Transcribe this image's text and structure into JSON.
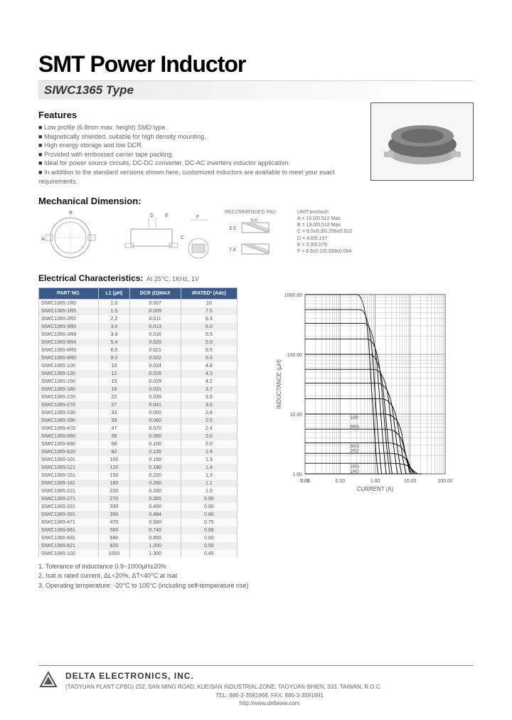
{
  "title": "SMT Power Inductor",
  "subtitle": "SIWC1365 Type",
  "features_heading": "Features",
  "features": [
    "Low profile (6.8mm max. height) SMD type.",
    "Magnetically shielded, suitable for high density mounting.",
    "High energy storage and low DCR.",
    "Provided with embossed carrier tape packing.",
    "Ideal for power source circuits, DC-DC converter, DC-AC inverters inductor application.",
    "In addition to the standard versions shown here, customized inductors are available to meet your exact requirements."
  ],
  "mech_heading": "Mechanical Dimension:",
  "pad_heading": "RECOMMENDED PAD",
  "pad_dims": {
    "w1": "5.0",
    "w2": "3.0",
    "h": "7.6"
  },
  "unit_lines": [
    "UNIT:mm/inch",
    "A = 13.0/0.512 Max.",
    "B = 13.0/0.512 Max.",
    "C = 6.5±0.3/0.256±0.012",
    "D = 4.0/0.157",
    "E = 2.0/0.079",
    "F = 8.6±0.1/0.339±0.004"
  ],
  "ec_heading": "Electrical Characteristics:",
  "ec_sub": "At 25°C, 1KHz, 1V",
  "cols": [
    "PART NO.",
    "L1 (µH)",
    "DCR (Ω)MAX",
    "IRATED² (Adc)"
  ],
  "rows": [
    [
      "SIWC1365-1R0",
      "1.0",
      "0.007",
      "10"
    ],
    [
      "SIWC1365-1R5",
      "1.5",
      "0.009",
      "7.5"
    ],
    [
      "SIWC1365-2R2",
      "2.2",
      "0.011",
      "6.3"
    ],
    [
      "SIWC1365-3R0",
      "3.0",
      "0.013",
      "6.0"
    ],
    [
      "SIWC1365-3R9",
      "3.9",
      "0.016",
      "5.5"
    ],
    [
      "SIWC1365-5R4",
      "5.4",
      "0.020",
      "5.0"
    ],
    [
      "SIWC1365-6R5",
      "6.5",
      "0.021",
      "5.5"
    ],
    [
      "SIWC1365-8R0",
      "8.0",
      "0.022",
      "5.0"
    ],
    [
      "SIWC1365-100",
      "10",
      "0.024",
      "4.8"
    ],
    [
      "SIWC1365-120",
      "12",
      "0.026",
      "4.3"
    ],
    [
      "SIWC1365-150",
      "15",
      "0.029",
      "4.2"
    ],
    [
      "SIWC1365-180",
      "18",
      "0.031",
      "3.7"
    ],
    [
      "SIWC1365-220",
      "22",
      "0.035",
      "3.5"
    ],
    [
      "SIWC1365-270",
      "27",
      "0.041",
      "3.0"
    ],
    [
      "SIWC1365-330",
      "33",
      "0.050",
      "2.8"
    ],
    [
      "SIWC1365-390",
      "39",
      "0.060",
      "2.5"
    ],
    [
      "SIWC1365-470",
      "47",
      "0.070",
      "2.4"
    ],
    [
      "SIWC1365-560",
      "56",
      "0.080",
      "2.0"
    ],
    [
      "SIWC1365-680",
      "68",
      "0.100",
      "2.0"
    ],
    [
      "SIWC1365-820",
      "82",
      "0.135",
      "1.9"
    ],
    [
      "SIWC1365-101",
      "100",
      "0.150",
      "1.3"
    ],
    [
      "SIWC1365-121",
      "120",
      "0.180",
      "1.4"
    ],
    [
      "SIWC1365-151",
      "150",
      "0.220",
      "1.3"
    ],
    [
      "SIWC1365-181",
      "180",
      "0.260",
      "1.1"
    ],
    [
      "SIWC1365-221",
      "220",
      "0.330",
      "1.0"
    ],
    [
      "SIWC1365-271",
      "270",
      "0.355",
      "0.95"
    ],
    [
      "SIWC1365-331",
      "330",
      "0.400",
      "0.90"
    ],
    [
      "SIWC1365-391",
      "390",
      "0.484",
      "0.80"
    ],
    [
      "SIWC1365-471",
      "470",
      "0.580",
      "0.75"
    ],
    [
      "SIWC1365-561",
      "560",
      "0.740",
      "0.68"
    ],
    [
      "SIWC1365-681",
      "680",
      "0.850",
      "0.60"
    ],
    [
      "SIWC1365-821",
      "820",
      "1.200",
      "0.55"
    ],
    [
      "SIWC1365-102",
      "1000",
      "1.300",
      "0.45"
    ]
  ],
  "chart": {
    "ylabel": "INDUCTANCE (µH)",
    "xlabel": "CURRENT (A)",
    "x_ticks": [
      "0.00",
      "0.01",
      "0.10",
      "1.00",
      "10.00",
      "100.00"
    ],
    "y_ticks": [
      "1.00",
      "10.00",
      "100.00",
      "1000.00"
    ],
    "grid_color": "#888888",
    "bg_color": "#ffffff",
    "line_color": "#000000",
    "curve_labels": [
      "1R0",
      "1R5",
      "2R2",
      "3R3",
      "5R6",
      "100"
    ],
    "series": [
      {
        "start_y": 1000,
        "drop_x": 0.55
      },
      {
        "start_y": 560,
        "drop_x": 0.7
      },
      {
        "start_y": 330,
        "drop_x": 0.95
      },
      {
        "start_y": 180,
        "drop_x": 1.2
      },
      {
        "start_y": 100,
        "drop_x": 1.4
      },
      {
        "start_y": 56,
        "drop_x": 2.0
      },
      {
        "start_y": 33,
        "drop_x": 2.6
      },
      {
        "start_y": 18,
        "drop_x": 3.5
      },
      {
        "start_y": 10,
        "drop_x": 4.6
      },
      {
        "start_y": 5.6,
        "drop_x": 5.0
      },
      {
        "start_y": 3.3,
        "drop_x": 5.7
      },
      {
        "start_y": 2.2,
        "drop_x": 6.3
      },
      {
        "start_y": 1.5,
        "drop_x": 7.5
      },
      {
        "start_y": 1.0,
        "drop_x": 10.0
      }
    ]
  },
  "notes_label": "Notes",
  "notes": [
    "1. Tolerance of inductance 0.9~1000µH±20%",
    "2. Isat is rated current, ΔL<20%, ΔT<40°C at Isat",
    "3. Operating temperature: -20°C to 105°C (including self-temperature rise)"
  ],
  "footer": {
    "company": "DELTA ELECTRONICS, INC.",
    "addr": "(TAOYUAN PLANT CPBG) 252, SAN MING ROAD, KUEISAN INDUSTRIAL ZONE, TAOYUAN SHIEN, 333, TAIWAN, R.O.C.",
    "tel": "TEL: 886-3-3591968, FAX: 886-3-3591991",
    "url": "http://www.deltaww.com"
  },
  "colors": {
    "photo_body": "#6b6b6b",
    "photo_light": "#8a8a8a",
    "photo_base": "#b0b0b0",
    "header_bg": "#3a5a8a"
  }
}
